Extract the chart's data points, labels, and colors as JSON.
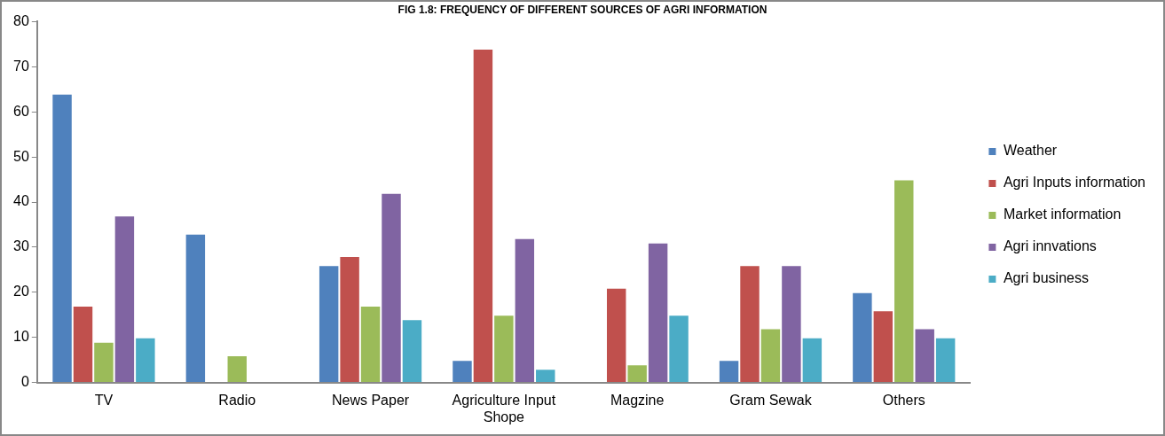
{
  "chart_data": {
    "type": "bar",
    "title": "FIG 1.8: FREQUENCY OF DIFFERENT SOURCES OF AGRI INFORMATION",
    "categories": [
      "TV",
      "Radio",
      "News Paper",
      "Agriculture Input Shope",
      "Magzine",
      "Gram Sewak",
      "Others"
    ],
    "series": [
      {
        "name": "Weather",
        "color": "#4f81bd",
        "values": [
          64,
          33,
          26,
          5,
          0,
          5,
          20
        ]
      },
      {
        "name": "Agri Inputs information",
        "color": "#c0504d",
        "values": [
          17,
          0,
          28,
          74,
          21,
          26,
          16
        ]
      },
      {
        "name": "Market information",
        "color": "#9bbb59",
        "values": [
          9,
          6,
          17,
          15,
          4,
          12,
          45
        ]
      },
      {
        "name": "Agri innvations",
        "color": "#8064a2",
        "values": [
          37,
          0,
          42,
          32,
          31,
          26,
          12
        ]
      },
      {
        "name": "Agri business",
        "color": "#4bacc6",
        "values": [
          10,
          0,
          14,
          3,
          15,
          10,
          10
        ]
      }
    ],
    "ylim": [
      0,
      80
    ],
    "yticks": [
      0,
      10,
      20,
      30,
      40,
      50,
      60,
      70,
      80
    ],
    "grid": false,
    "legend": "right"
  }
}
